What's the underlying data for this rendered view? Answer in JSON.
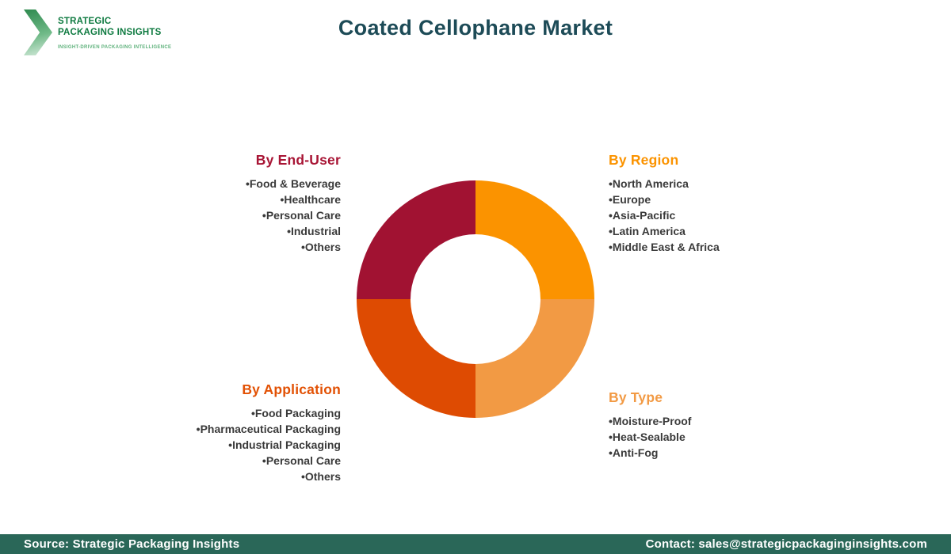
{
  "header": {
    "title": "Coated Cellophane Market",
    "title_color": "#1d4b57"
  },
  "logo": {
    "line1": "STRATEGIC",
    "line2": "PACKAGING INSIGHTS",
    "tagline": "INSIGHT-DRIVEN PACKAGING INTELLIGENCE",
    "text_color": "#0e7a40",
    "tagline_color": "#5fb27c"
  },
  "chart_data": {
    "type": "pie",
    "subtype": "donut",
    "title": "Coated Cellophane Market",
    "legend_position": "around",
    "segments": [
      {
        "label": "By Region",
        "value": 25,
        "color": "#fb9300",
        "position": "top-right"
      },
      {
        "label": "By Type",
        "value": 25,
        "color": "#f29a44",
        "position": "bottom-right"
      },
      {
        "label": "By Application",
        "value": 25,
        "color": "#de4b02",
        "position": "bottom-left"
      },
      {
        "label": "By End-User",
        "value": 25,
        "color": "#a11232",
        "position": "top-left"
      }
    ]
  },
  "sections": {
    "end_user": {
      "heading": "By End-User",
      "color": "#a81535",
      "items": [
        "Food & Beverage",
        "Healthcare",
        "Personal Care",
        "Industrial",
        "Others"
      ]
    },
    "region": {
      "heading": "By Region",
      "color": "#fb9300",
      "items": [
        "North America",
        "Europe",
        "Asia-Pacific",
        "Latin America",
        "Middle East & Africa"
      ]
    },
    "application": {
      "heading": "By Application",
      "color": "#e25104",
      "items": [
        "Food Packaging",
        "Pharmaceutical Packaging",
        "Industrial Packaging",
        "Personal Care",
        "Others"
      ]
    },
    "type": {
      "heading": "By Type",
      "color": "#f29a44",
      "items": [
        "Moisture-Proof",
        "Heat-Sealable",
        "Anti-Fog"
      ]
    }
  },
  "footer": {
    "bg_color": "#2a6758",
    "source": "Source: Strategic Packaging Insights",
    "contact": "Contact: sales@strategicpackaginginsights.com"
  }
}
